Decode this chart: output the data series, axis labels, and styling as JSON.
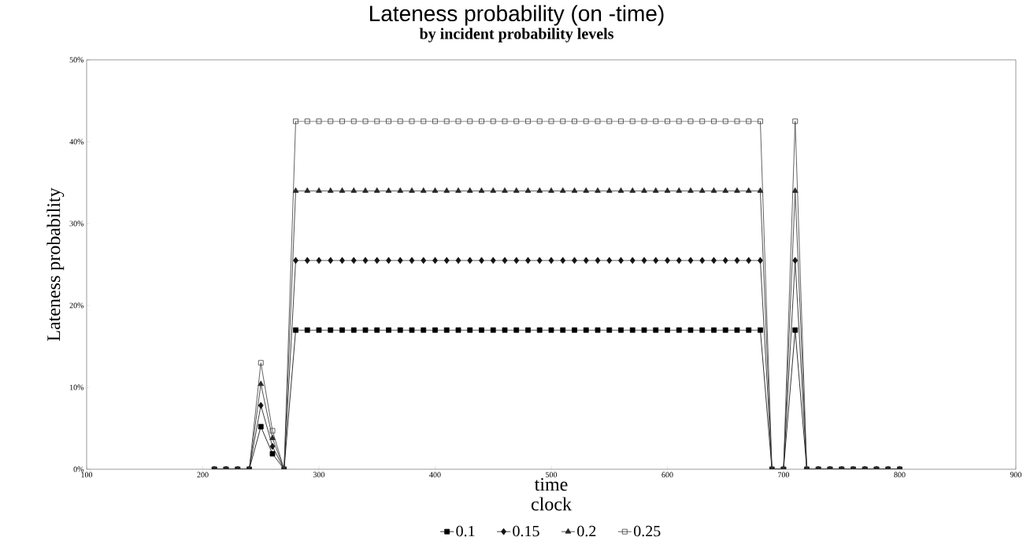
{
  "chart_data": {
    "type": "line",
    "title": "Lateness probability  (on -time)",
    "subtitle": "by incident probability levels",
    "xlabel": "time",
    "ylabel": "Lateness probability",
    "annotations": [
      "clock"
    ],
    "x": [
      210,
      220,
      230,
      240,
      250,
      260,
      270,
      280,
      290,
      300,
      310,
      320,
      330,
      340,
      350,
      360,
      370,
      380,
      390,
      400,
      410,
      420,
      430,
      440,
      450,
      460,
      470,
      480,
      490,
      500,
      510,
      520,
      530,
      540,
      550,
      560,
      570,
      580,
      590,
      600,
      610,
      620,
      630,
      640,
      650,
      660,
      670,
      680,
      690,
      700,
      710,
      720,
      730,
      740,
      750,
      760,
      770,
      780,
      790,
      800
    ],
    "series": [
      {
        "name": "0.1",
        "color": "#000000",
        "marker": "square",
        "values": [
          0,
          0,
          0,
          0,
          5.2,
          1.9,
          0,
          17,
          17,
          17,
          17,
          17,
          17,
          17,
          17,
          17,
          17,
          17,
          17,
          17,
          17,
          17,
          17,
          17,
          17,
          17,
          17,
          17,
          17,
          17,
          17,
          17,
          17,
          17,
          17,
          17,
          17,
          17,
          17,
          17,
          17,
          17,
          17,
          17,
          17,
          17,
          17,
          17,
          0,
          0,
          17,
          0,
          0,
          0,
          0,
          0,
          0,
          0,
          0,
          0
        ]
      },
      {
        "name": "0.15",
        "color": "#141414",
        "marker": "diamond",
        "values": [
          0,
          0,
          0,
          0,
          7.8,
          2.8,
          0,
          25.5,
          25.5,
          25.5,
          25.5,
          25.5,
          25.5,
          25.5,
          25.5,
          25.5,
          25.5,
          25.5,
          25.5,
          25.5,
          25.5,
          25.5,
          25.5,
          25.5,
          25.5,
          25.5,
          25.5,
          25.5,
          25.5,
          25.5,
          25.5,
          25.5,
          25.5,
          25.5,
          25.5,
          25.5,
          25.5,
          25.5,
          25.5,
          25.5,
          25.5,
          25.5,
          25.5,
          25.5,
          25.5,
          25.5,
          25.5,
          25.5,
          0,
          0,
          25.5,
          0,
          0,
          0,
          0,
          0,
          0,
          0,
          0,
          0
        ]
      },
      {
        "name": "0.2",
        "color": "#282828",
        "marker": "triangle",
        "values": [
          0,
          0,
          0,
          0,
          10.4,
          3.8,
          0,
          34,
          34,
          34,
          34,
          34,
          34,
          34,
          34,
          34,
          34,
          34,
          34,
          34,
          34,
          34,
          34,
          34,
          34,
          34,
          34,
          34,
          34,
          34,
          34,
          34,
          34,
          34,
          34,
          34,
          34,
          34,
          34,
          34,
          34,
          34,
          34,
          34,
          34,
          34,
          34,
          34,
          0,
          0,
          34,
          0,
          0,
          0,
          0,
          0,
          0,
          0,
          0,
          0
        ]
      },
      {
        "name": "0.25",
        "color": "#3c3c3c",
        "marker": "square",
        "values": [
          0,
          0,
          0,
          0,
          13,
          4.7,
          0,
          42.5,
          42.5,
          42.5,
          42.5,
          42.5,
          42.5,
          42.5,
          42.5,
          42.5,
          42.5,
          42.5,
          42.5,
          42.5,
          42.5,
          42.5,
          42.5,
          42.5,
          42.5,
          42.5,
          42.5,
          42.5,
          42.5,
          42.5,
          42.5,
          42.5,
          42.5,
          42.5,
          42.5,
          42.5,
          42.5,
          42.5,
          42.5,
          42.5,
          42.5,
          42.5,
          42.5,
          42.5,
          42.5,
          42.5,
          42.5,
          42.5,
          0,
          0,
          42.5,
          0,
          0,
          0,
          0,
          0,
          0,
          0,
          0,
          0
        ]
      }
    ],
    "xlim": [
      100,
      900
    ],
    "xticks": [
      100,
      200,
      300,
      400,
      500,
      600,
      700,
      800,
      900
    ],
    "ylim": [
      0,
      50
    ],
    "yticks": [
      {
        "value": 0,
        "label": "0%"
      },
      {
        "value": 10,
        "label": "10%"
      },
      {
        "value": 20,
        "label": "20%"
      },
      {
        "value": 30,
        "label": "30%"
      },
      {
        "value": 40,
        "label": "40%"
      },
      {
        "value": 50,
        "label": "50%"
      }
    ],
    "grid": false,
    "legend": "bottom",
    "line_style": "solid"
  }
}
